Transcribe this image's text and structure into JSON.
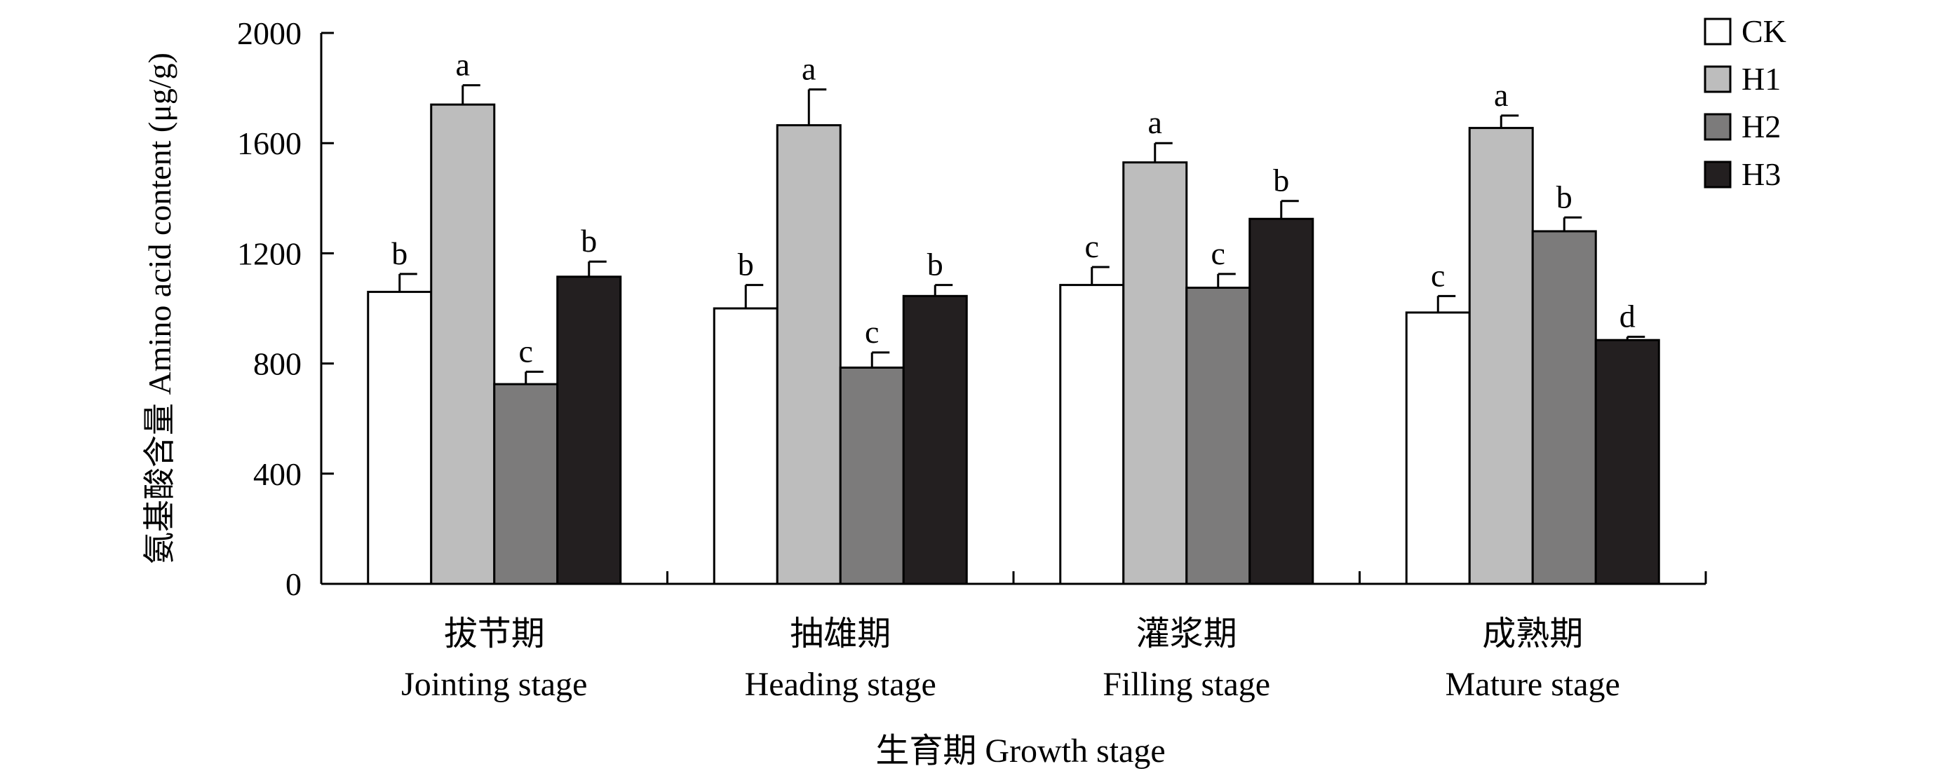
{
  "chart_data": {
    "type": "bar",
    "ylabel": "氨基酸含量 Amino acid content (μg/g)",
    "xlabel": "生育期 Growth stage",
    "ylim": [
      0,
      2000
    ],
    "yticks": [
      0,
      400,
      800,
      1200,
      1600,
      2000
    ],
    "categories": [
      {
        "zh": "拔节期",
        "en": "Jointing stage"
      },
      {
        "zh": "抽雄期",
        "en": "Heading stage"
      },
      {
        "zh": "灌浆期",
        "en": "Filling stage"
      },
      {
        "zh": "成熟期",
        "en": "Mature stage"
      }
    ],
    "series": [
      {
        "name": "CK",
        "color": "#ffffff",
        "values": [
          1060,
          1000,
          1085,
          985
        ],
        "errors": [
          65,
          85,
          65,
          60
        ],
        "letters": [
          "b",
          "b",
          "c",
          "c"
        ]
      },
      {
        "name": "H1",
        "color": "#bdbdbd",
        "values": [
          1740,
          1665,
          1530,
          1655
        ],
        "errors": [
          70,
          130,
          70,
          45
        ],
        "letters": [
          "a",
          "a",
          "a",
          "a"
        ]
      },
      {
        "name": "H2",
        "color": "#7c7b7b",
        "values": [
          725,
          785,
          1075,
          1280
        ],
        "errors": [
          45,
          55,
          50,
          50
        ],
        "letters": [
          "c",
          "c",
          "c",
          "b"
        ]
      },
      {
        "name": "H3",
        "color": "#231f20",
        "values": [
          1115,
          1045,
          1325,
          885
        ],
        "errors": [
          55,
          40,
          65,
          12
        ],
        "letters": [
          "b",
          "b",
          "b",
          "d"
        ]
      }
    ],
    "legend_position": "top-right",
    "grid": false
  }
}
